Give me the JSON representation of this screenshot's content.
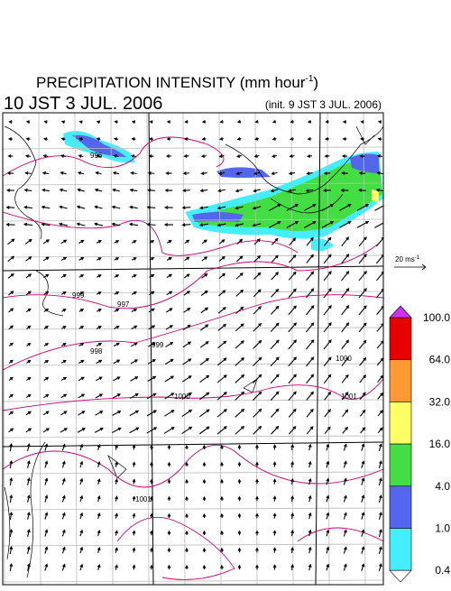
{
  "header": {
    "title": "PRECIPITATION INTENSITY (mm hour",
    "title_sup": "-1",
    "title_end": ")",
    "valid_time": "10 JST 3 JUL. 2006",
    "init_time": "(init. 9 JST 3 JUL. 2006)"
  },
  "reference_vector": {
    "label": "20 ms",
    "label_sup": "-1"
  },
  "legend": {
    "labels": [
      "100.0",
      "64.0",
      "32.0",
      "16.0",
      "4.0",
      "1.0",
      "0.4"
    ],
    "colors": [
      "#e60000",
      "#ff9933",
      "#ffff66",
      "#44dd44",
      "#5566ee",
      "#44eeff"
    ],
    "over_color": "#cc33ee",
    "under_color": "#ffffff"
  },
  "contour_labels": [
    "996",
    "999",
    "997",
    "998",
    "999",
    "1000",
    "1000",
    "1001",
    "1001"
  ]
}
